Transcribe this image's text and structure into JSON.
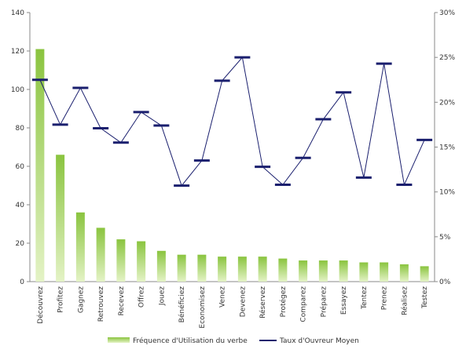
{
  "chart_data": {
    "type": "bar",
    "categories": [
      "Découvrez",
      "Profitez",
      "Gagnez",
      "Retrouvez",
      "Recevez",
      "Offrez",
      "Jouez",
      "Bénéficiez",
      "Economisez",
      "Venez",
      "Devenez",
      "Réservez",
      "Protégez",
      "Comparez",
      "Préparez",
      "Essayez",
      "Tentez",
      "Prenez",
      "Réalisez",
      "Testez"
    ],
    "series": [
      {
        "name": "Fréquence d'Utilisation du verbe",
        "type": "bar",
        "axis": "left",
        "values": [
          121,
          66,
          36,
          28,
          22,
          21,
          16,
          14,
          14,
          13,
          13,
          13,
          12,
          11,
          11,
          11,
          10,
          10,
          9,
          8
        ]
      },
      {
        "name": "Taux d'Ouvreur Moyen",
        "type": "line",
        "axis": "right",
        "values": [
          22.5,
          17.5,
          21.6,
          17.1,
          15.5,
          18.9,
          17.4,
          10.7,
          13.5,
          22.4,
          25.0,
          12.8,
          10.8,
          13.8,
          18.1,
          21.1,
          11.6,
          24.3,
          10.8,
          15.8
        ]
      }
    ],
    "y_left": {
      "ylim": [
        0,
        140
      ],
      "ticks": [
        "0",
        "20",
        "40",
        "60",
        "80",
        "100",
        "120",
        "140"
      ]
    },
    "y_right": {
      "ylim": [
        0,
        30
      ],
      "ticks": [
        "0%",
        "5%",
        "10%",
        "15%",
        "20%",
        "25%",
        "30%"
      ]
    },
    "grid": false,
    "legend_position": "bottom",
    "colors": {
      "bar_top": "#8ac43f",
      "bar_bottom": "#e4f3c6",
      "line": "#1a1f6e",
      "axis": "#888888"
    }
  }
}
